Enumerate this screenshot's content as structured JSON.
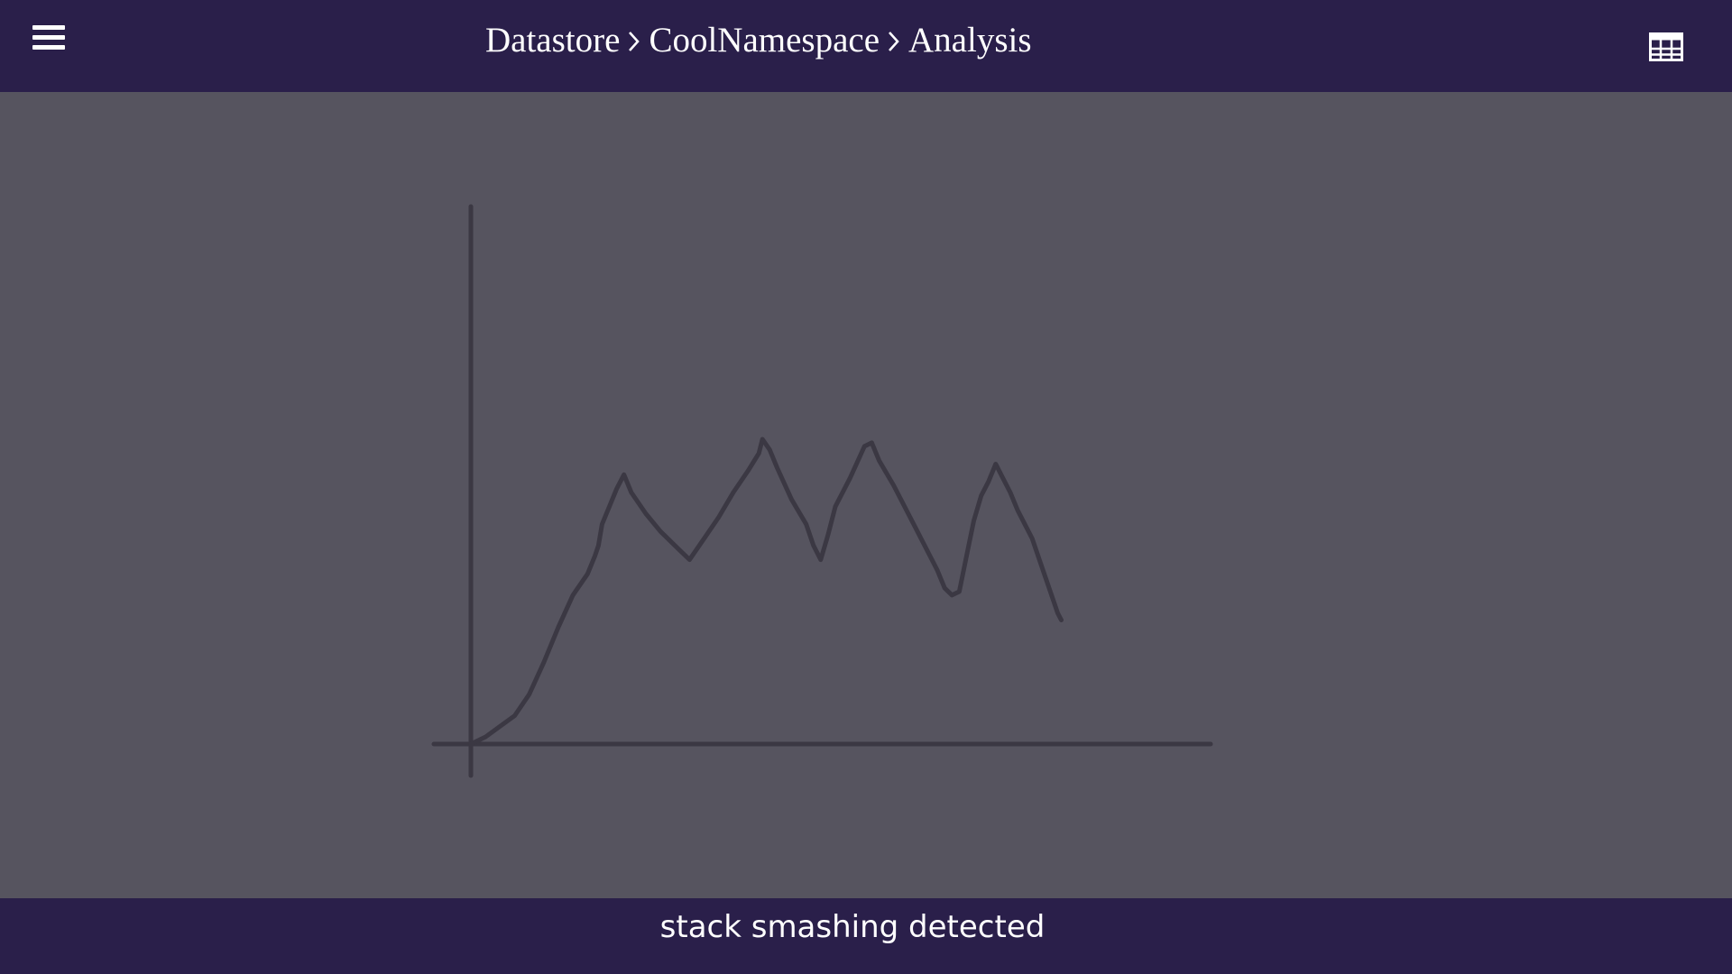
{
  "header": {
    "breadcrumb": [
      "Datastore",
      "CoolNamespace",
      "Analysis"
    ],
    "menu_icon": "hamburger-menu-icon",
    "table_icon": "table-grid-icon"
  },
  "status": {
    "message": "stack smashing detected"
  },
  "colors": {
    "header_bg": "#2a1f4a",
    "canvas_bg": "#56545f",
    "stroke": "#3b3843",
    "text": "#ffffff"
  },
  "chart_data": {
    "type": "line",
    "title": "",
    "xlabel": "",
    "ylabel": "",
    "grid": false,
    "xlim": [
      0,
      100
    ],
    "ylim": [
      0,
      100
    ],
    "series": [
      {
        "values": [
          [
            0,
            0
          ],
          [
            2,
            2
          ],
          [
            4,
            5
          ],
          [
            6,
            8
          ],
          [
            8,
            14
          ],
          [
            10,
            23
          ],
          [
            12,
            33
          ],
          [
            14,
            42
          ],
          [
            16,
            48
          ],
          [
            17,
            53
          ],
          [
            17.5,
            56
          ],
          [
            18,
            62
          ],
          [
            19,
            67
          ],
          [
            20,
            72
          ],
          [
            21,
            76
          ],
          [
            22,
            71
          ],
          [
            24,
            65
          ],
          [
            26,
            60
          ],
          [
            28,
            56
          ],
          [
            29,
            54
          ],
          [
            30,
            52
          ],
          [
            32,
            58
          ],
          [
            34,
            64
          ],
          [
            36,
            71
          ],
          [
            38,
            77
          ],
          [
            39.5,
            82
          ],
          [
            40,
            86
          ],
          [
            41,
            83
          ],
          [
            42,
            78
          ],
          [
            44,
            69
          ],
          [
            46,
            62
          ],
          [
            47,
            56
          ],
          [
            48,
            52
          ],
          [
            49,
            59
          ],
          [
            50,
            67
          ],
          [
            52,
            75
          ],
          [
            54,
            84
          ],
          [
            55,
            85
          ],
          [
            56,
            80
          ],
          [
            58,
            73
          ],
          [
            60,
            65
          ],
          [
            62,
            57
          ],
          [
            64,
            49
          ],
          [
            65,
            44
          ],
          [
            66,
            42
          ],
          [
            67,
            43
          ],
          [
            68,
            53
          ],
          [
            69,
            63
          ],
          [
            70,
            70
          ],
          [
            71,
            74
          ],
          [
            72,
            79
          ],
          [
            73,
            75
          ],
          [
            74,
            71
          ],
          [
            75,
            66
          ],
          [
            77,
            58
          ],
          [
            78,
            52
          ],
          [
            79,
            46
          ],
          [
            80,
            40
          ],
          [
            80.5,
            37
          ],
          [
            81,
            35
          ]
        ]
      }
    ]
  }
}
